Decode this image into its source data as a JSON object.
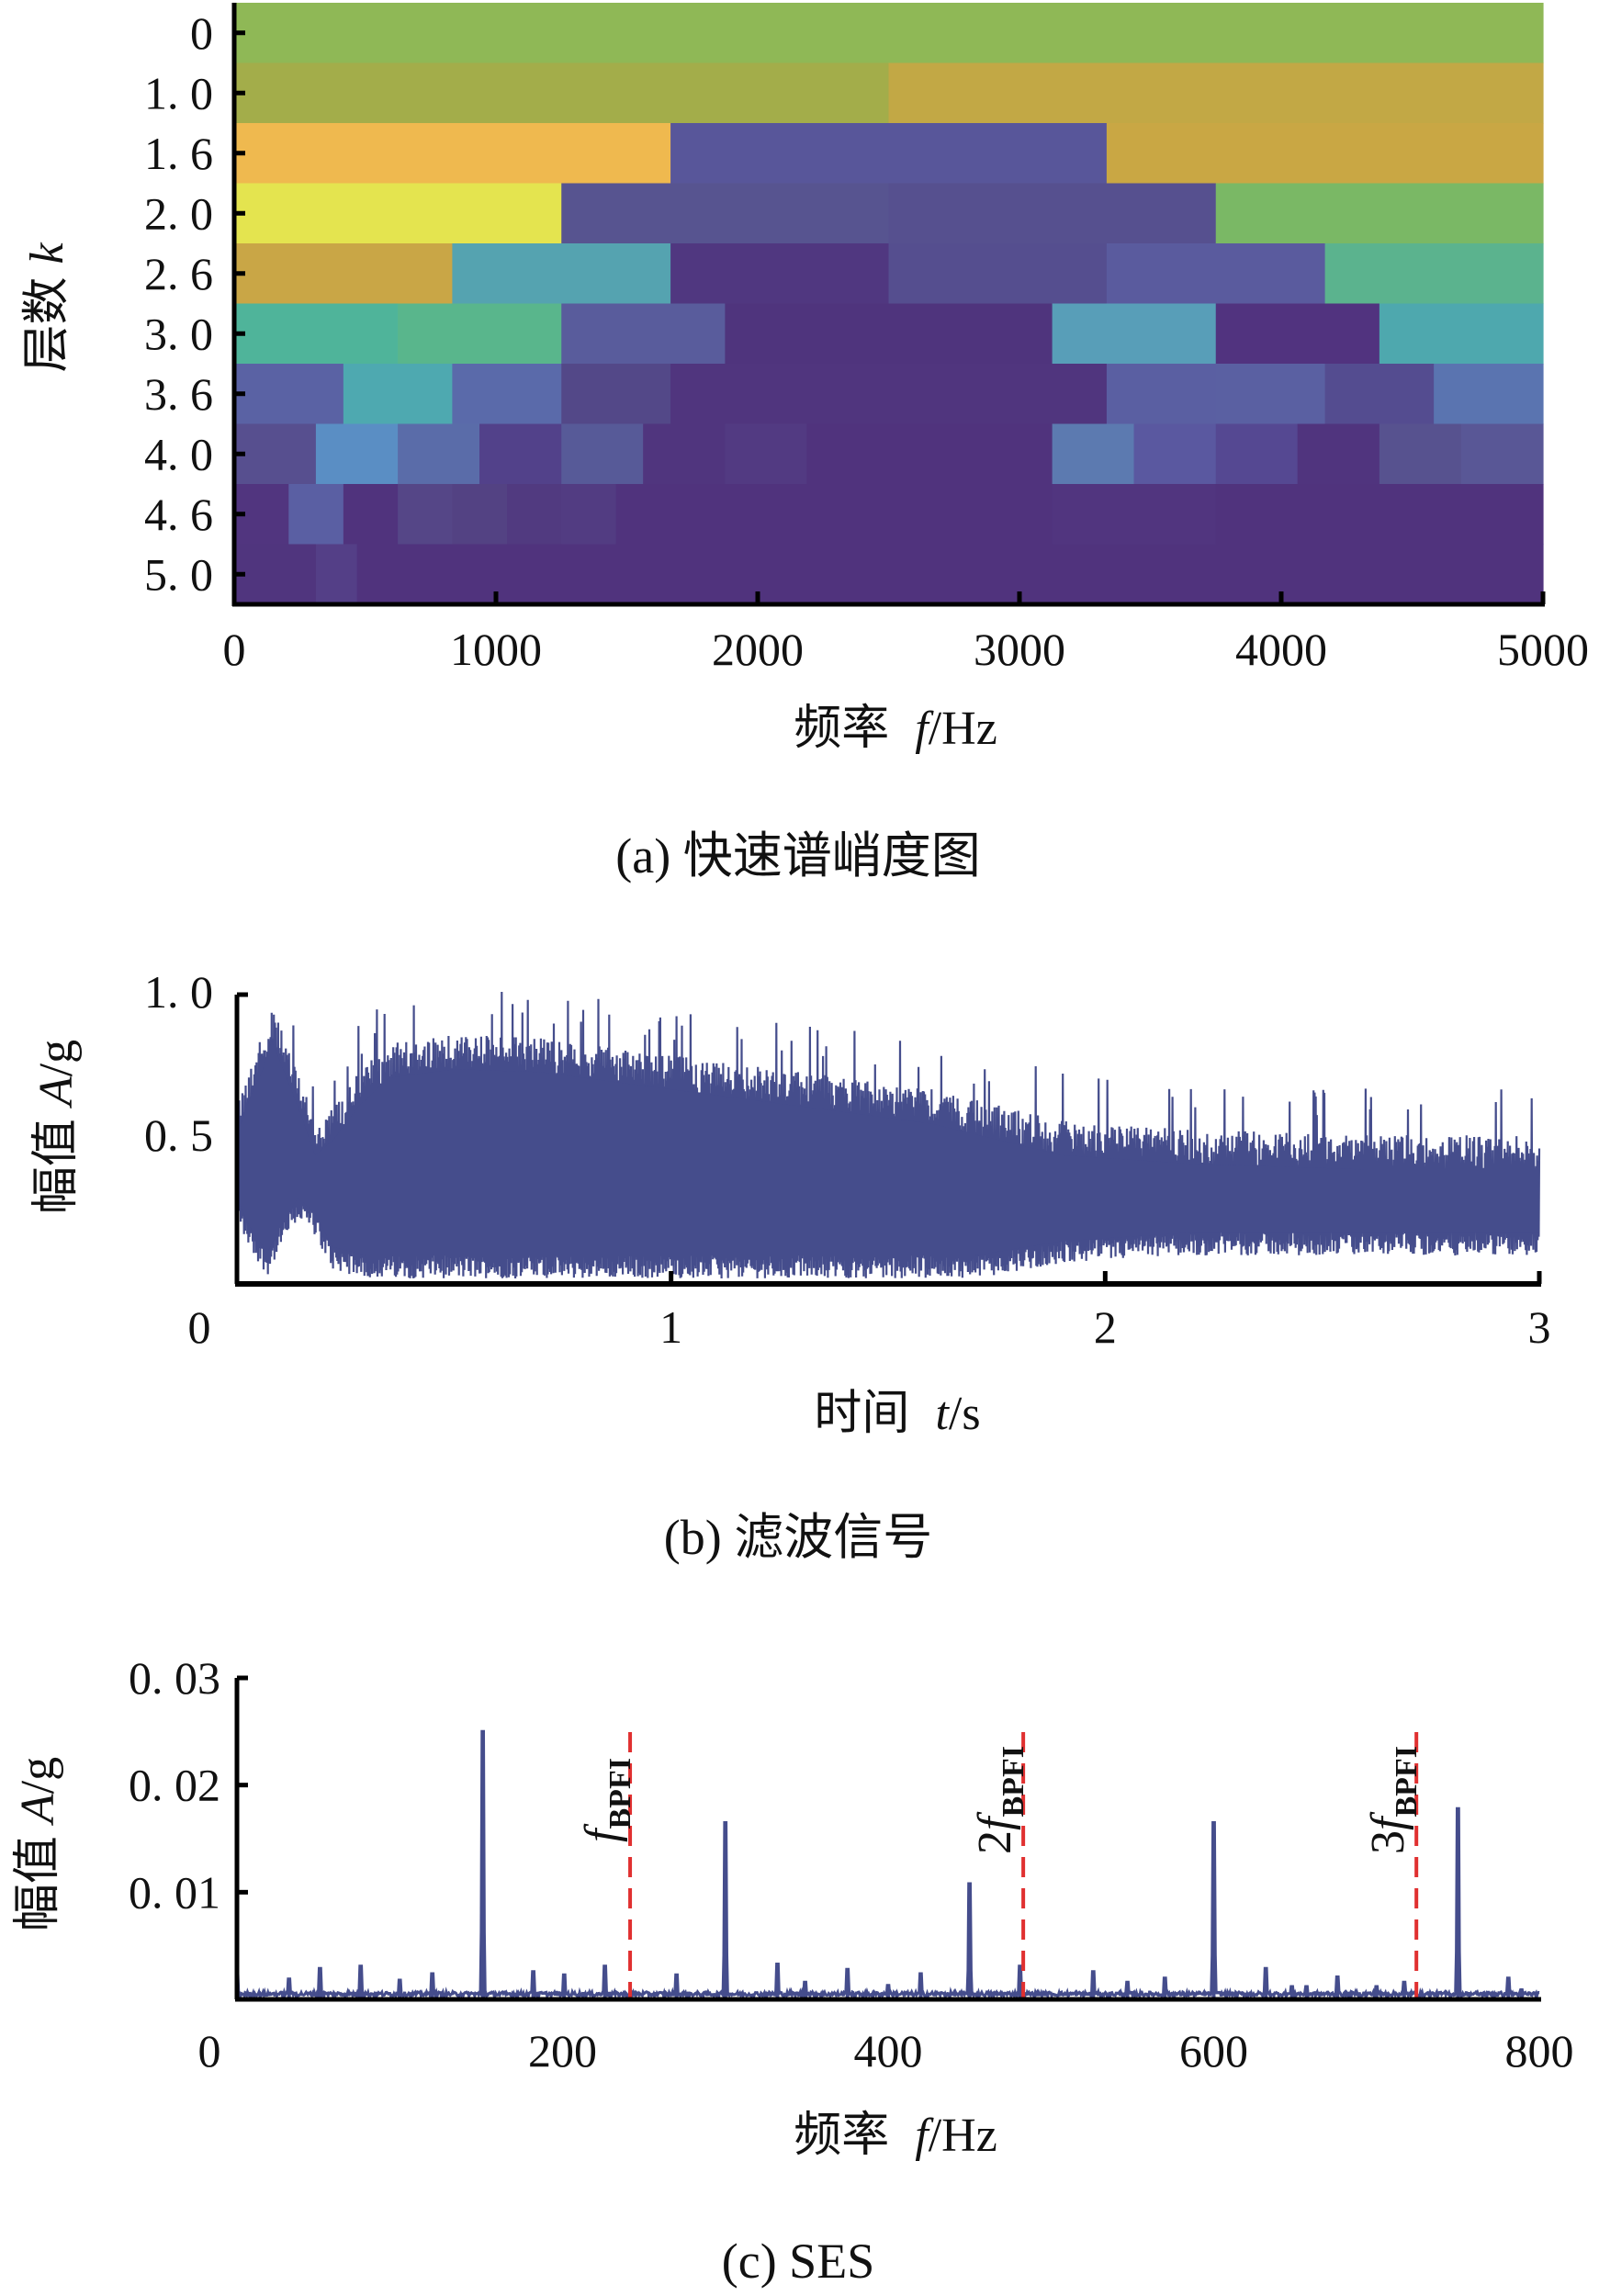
{
  "chart_data": [
    {
      "type": "heatmap",
      "title": "(a) 快速谱峭度图",
      "xlabel_text": "频率",
      "xlabel_var": "f",
      "xlabel_unit": "/Hz",
      "ylabel_text": "层数",
      "ylabel_var": "k",
      "xlim": [
        0,
        5000
      ],
      "xticks": [
        "0",
        "1000",
        "2000",
        "3000",
        "4000",
        "5000"
      ],
      "xtick_values": [
        0,
        1000,
        2000,
        3000,
        4000,
        5000
      ],
      "rows": [
        {
          "label": "0",
          "cells": [
            [
              0,
              5000,
              "#8fb856"
            ]
          ]
        },
        {
          "label": "1. 0",
          "cells": [
            [
              0,
              2500,
              "#a3ad4a"
            ],
            [
              2500,
              5000,
              "#c2a845"
            ]
          ]
        },
        {
          "label": "1. 6",
          "cells": [
            [
              0,
              1667,
              "#efb94f"
            ],
            [
              1667,
              3333,
              "#58569a"
            ],
            [
              3333,
              5000,
              "#c9a744"
            ]
          ]
        },
        {
          "label": "2. 0",
          "cells": [
            [
              0,
              1250,
              "#e4e44f"
            ],
            [
              1250,
              2500,
              "#575490"
            ],
            [
              2500,
              3750,
              "#56508f"
            ],
            [
              3750,
              5000,
              "#7ab865"
            ]
          ]
        },
        {
          "label": "2. 6",
          "cells": [
            [
              0,
              833,
              "#c9a646"
            ],
            [
              833,
              1667,
              "#55a3b0"
            ],
            [
              1667,
              2500,
              "#503780"
            ],
            [
              2500,
              3333,
              "#554e8f"
            ],
            [
              3333,
              4167,
              "#5a5b9e"
            ],
            [
              4167,
              5000,
              "#5bb38e"
            ]
          ]
        },
        {
          "label": "3. 0",
          "cells": [
            [
              0,
              625,
              "#4fb49a"
            ],
            [
              625,
              1250,
              "#59b68c"
            ],
            [
              1250,
              1875,
              "#595c9c"
            ],
            [
              1875,
              3125,
              "#4f347d"
            ],
            [
              3125,
              3750,
              "#589eb8"
            ],
            [
              3750,
              4375,
              "#51337f"
            ],
            [
              4375,
              5000,
              "#4ea8ae"
            ]
          ]
        },
        {
          "label": "3. 6",
          "cells": [
            [
              0,
              417,
              "#5a62a4"
            ],
            [
              417,
              833,
              "#4ea9b0"
            ],
            [
              833,
              1250,
              "#5a6aaa"
            ],
            [
              1250,
              1667,
              "#534888"
            ],
            [
              1667,
              3333,
              "#50357e"
            ],
            [
              3333,
              3750,
              "#5a5fa2"
            ],
            [
              3750,
              4167,
              "#5a60a2"
            ],
            [
              4167,
              4583,
              "#544c90"
            ],
            [
              4583,
              5000,
              "#5a74b0"
            ]
          ]
        },
        {
          "label": "4. 0",
          "cells": [
            [
              0,
              312,
              "#574f8f"
            ],
            [
              312,
              625,
              "#5a8ec4"
            ],
            [
              625,
              937,
              "#5a6ca9"
            ],
            [
              937,
              1250,
              "#52418a"
            ],
            [
              1250,
              1562,
              "#575a98"
            ],
            [
              1562,
              1875,
              "#50357e"
            ],
            [
              1875,
              2187,
              "#523a82"
            ],
            [
              2187,
              3125,
              "#50337d"
            ],
            [
              3125,
              3437,
              "#5c7ab0"
            ],
            [
              3437,
              3750,
              "#5a58a0"
            ],
            [
              3750,
              4062,
              "#554892"
            ],
            [
              4062,
              4375,
              "#50347e"
            ],
            [
              4375,
              4687,
              "#57528f"
            ],
            [
              4687,
              5000,
              "#595796"
            ]
          ]
        },
        {
          "label": "4. 6",
          "cells": [
            [
              0,
              208,
              "#51357f"
            ],
            [
              208,
              417,
              "#5a5fa3"
            ],
            [
              417,
              625,
              "#50337d"
            ],
            [
              625,
              833,
              "#554687"
            ],
            [
              833,
              1042,
              "#534283"
            ],
            [
              1042,
              1250,
              "#513a80"
            ],
            [
              1250,
              1458,
              "#523c82"
            ],
            [
              1458,
              3125,
              "#50337d"
            ],
            [
              3125,
              3750,
              "#51357f"
            ],
            [
              3750,
              5000,
              "#50337d"
            ]
          ]
        },
        {
          "label": "5. 0",
          "cells": [
            [
              0,
              312,
              "#50357e"
            ],
            [
              312,
              469,
              "#543f87"
            ],
            [
              469,
              5000,
              "#50337d"
            ]
          ]
        }
      ]
    },
    {
      "type": "line",
      "title": "(b) 滤波信号",
      "xlabel_text": "时间",
      "xlabel_var": "t",
      "xlabel_unit": "/s",
      "ylabel_text": "幅值",
      "ylabel_var": "A",
      "ylabel_unit": "/g",
      "xlim": [
        0,
        3
      ],
      "ylim": [
        -0.02,
        1.0
      ],
      "xticks": [
        "0",
        "1",
        "2",
        "3"
      ],
      "xtick_values": [
        0,
        1,
        2,
        3
      ],
      "yticks": [
        "0. 5",
        "1. 0"
      ],
      "ytick_values": [
        0.5,
        1.0
      ],
      "color": "#454d8c",
      "upper_envelope": [
        [
          0,
          0.62
        ],
        [
          0.03,
          0.75
        ],
        [
          0.06,
          0.85
        ],
        [
          0.08,
          0.95
        ],
        [
          0.12,
          0.8
        ],
        [
          0.15,
          0.68
        ],
        [
          0.18,
          0.55
        ],
        [
          0.22,
          0.6
        ],
        [
          0.28,
          0.72
        ],
        [
          0.35,
          0.82
        ],
        [
          0.5,
          0.85
        ],
        [
          0.7,
          0.84
        ],
        [
          1.0,
          0.78
        ],
        [
          1.3,
          0.72
        ],
        [
          1.6,
          0.66
        ],
        [
          1.9,
          0.55
        ],
        [
          2.2,
          0.52
        ],
        [
          2.6,
          0.5
        ],
        [
          3.0,
          0.5
        ]
      ],
      "lower_envelope": [
        [
          0,
          0.2
        ],
        [
          0.03,
          0.1
        ],
        [
          0.07,
          0.01
        ],
        [
          0.1,
          0.1
        ],
        [
          0.14,
          0.2
        ],
        [
          0.18,
          0.15
        ],
        [
          0.22,
          0.03
        ],
        [
          0.3,
          0.0
        ],
        [
          1.7,
          0.0
        ],
        [
          1.9,
          0.05
        ],
        [
          2.2,
          0.08
        ],
        [
          3.0,
          0.08
        ]
      ]
    },
    {
      "type": "line",
      "title": "(c) SES",
      "xlabel_text": "频率",
      "xlabel_var": "f",
      "xlabel_unit": "/Hz",
      "ylabel_text": "幅值",
      "ylabel_var": "A",
      "ylabel_unit": "/g",
      "xlim": [
        0,
        800
      ],
      "ylim": [
        0,
        0.03
      ],
      "xticks": [
        "0",
        "200",
        "400",
        "600",
        "800"
      ],
      "xtick_values": [
        0,
        200,
        400,
        600,
        800
      ],
      "yticks": [
        "0. 01",
        "0. 02",
        "0. 03"
      ],
      "ytick_values": [
        0.01,
        0.02,
        0.03
      ],
      "color": "#454d8c",
      "peaks": [
        [
          0,
          0.0026
        ],
        [
          32,
          0.0019
        ],
        [
          51,
          0.0029
        ],
        [
          76,
          0.0031
        ],
        [
          100,
          0.0018
        ],
        [
          120,
          0.0024
        ],
        [
          151,
          0.025
        ],
        [
          182,
          0.0026
        ],
        [
          201,
          0.0023
        ],
        [
          226,
          0.0031
        ],
        [
          270,
          0.0023
        ],
        [
          300,
          0.0165
        ],
        [
          332,
          0.0033
        ],
        [
          349,
          0.0016
        ],
        [
          375,
          0.0028
        ],
        [
          400,
          0.0013
        ],
        [
          420,
          0.0024
        ],
        [
          450,
          0.0108
        ],
        [
          481,
          0.0031
        ],
        [
          526,
          0.0026
        ],
        [
          547,
          0.0016
        ],
        [
          570,
          0.002
        ],
        [
          600,
          0.0165
        ],
        [
          632,
          0.0029
        ],
        [
          648,
          0.0012
        ],
        [
          657,
          0.0012
        ],
        [
          676,
          0.0021
        ],
        [
          700,
          0.0012
        ],
        [
          717,
          0.0016
        ],
        [
          750,
          0.0178
        ],
        [
          781,
          0.002
        ],
        [
          789,
          0.0009
        ]
      ],
      "markers": [
        {
          "x": 241.5,
          "prefix": "",
          "var": "f",
          "sub": "BPFI"
        },
        {
          "x": 483,
          "prefix": "2",
          "var": "f",
          "sub": "BPFI"
        },
        {
          "x": 724.5,
          "prefix": "3",
          "var": "f",
          "sub": "BPFI"
        }
      ],
      "marker_color": "#e03030"
    }
  ]
}
